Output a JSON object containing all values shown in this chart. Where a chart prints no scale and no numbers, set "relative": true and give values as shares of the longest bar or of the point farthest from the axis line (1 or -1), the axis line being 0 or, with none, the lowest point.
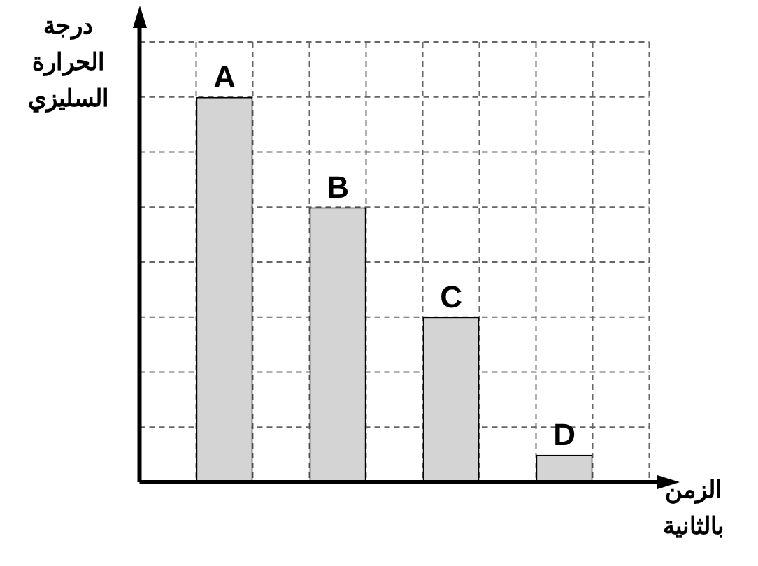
{
  "chart_data": {
    "type": "bar",
    "relative": true,
    "xlabel": "الزمن\nبالثانية",
    "ylabel": "درجة\nالحرارة\nالسليزي",
    "categories": [
      null,
      null,
      null,
      null
    ],
    "values": [
      1,
      0.714,
      0.429,
      0.071
    ],
    "annotations": [
      "A",
      "B",
      "C",
      "D"
    ],
    "color": "#d4d4d4",
    "grid": true,
    "legend": false
  }
}
